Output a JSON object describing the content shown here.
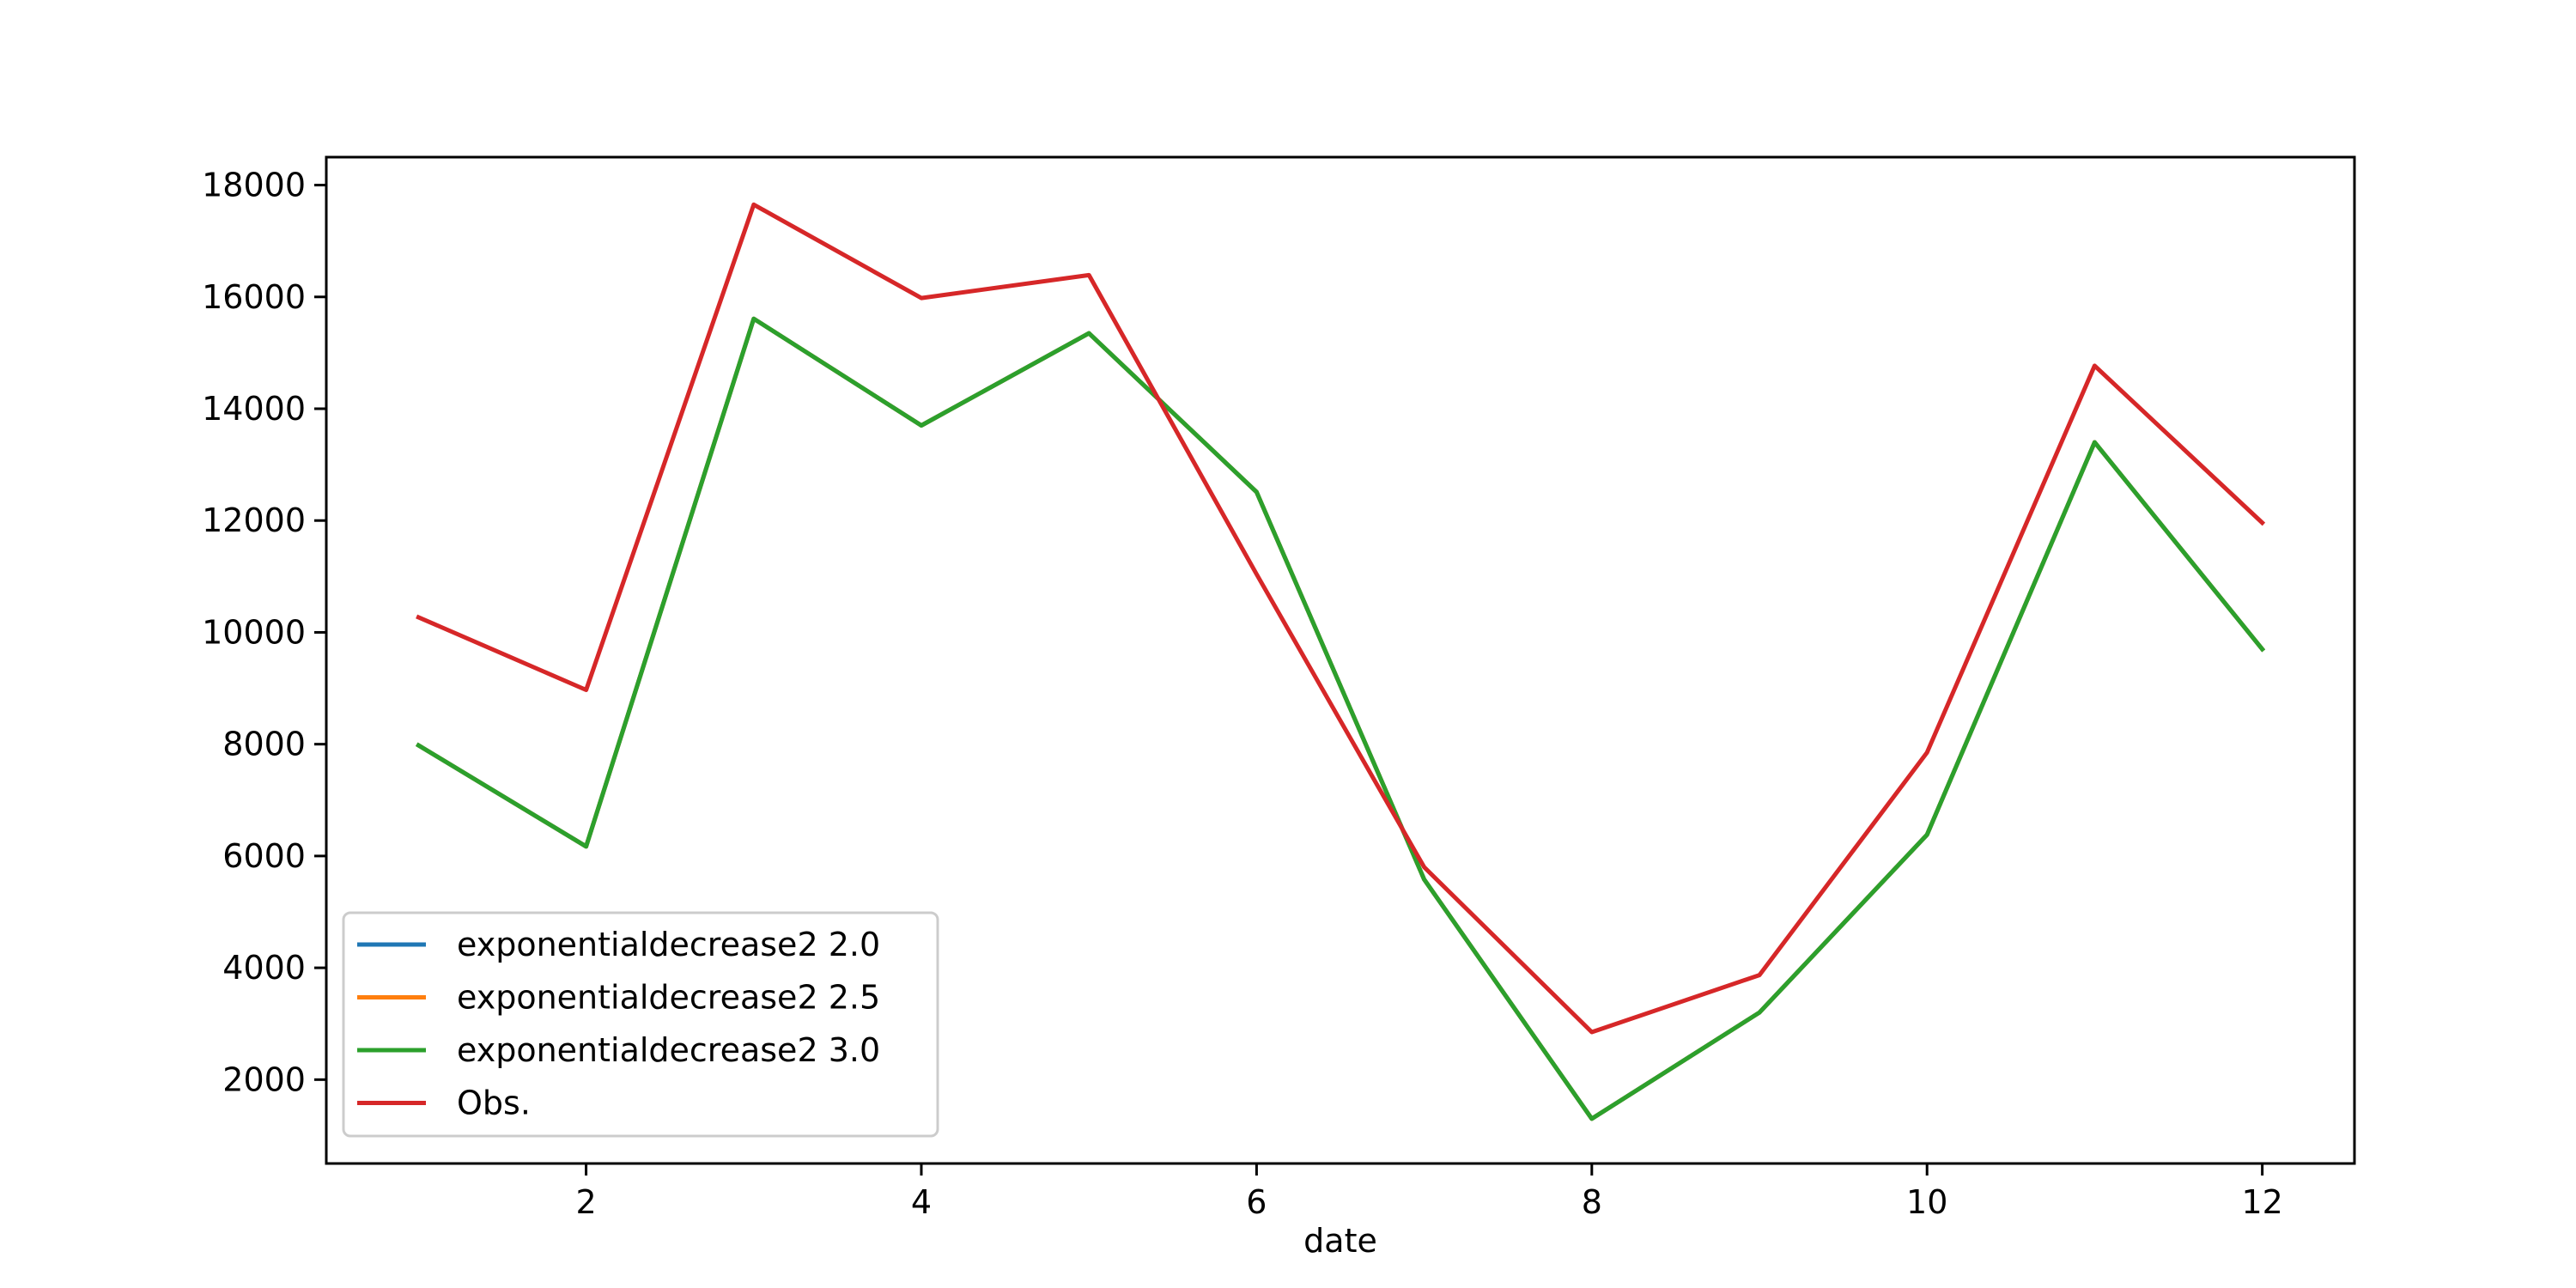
{
  "chart_data": {
    "type": "line",
    "title": "",
    "xlabel": "date",
    "ylabel": "",
    "x": [
      1,
      2,
      3,
      4,
      5,
      6,
      7,
      8,
      9,
      10,
      11,
      12
    ],
    "xlim": [
      0.45,
      12.55
    ],
    "ylim": [
      500,
      18500
    ],
    "xticks": [
      2,
      4,
      6,
      8,
      10,
      12
    ],
    "yticks": [
      2000,
      4000,
      6000,
      8000,
      10000,
      12000,
      14000,
      16000,
      18000
    ],
    "grid": false,
    "legend_position": "lower-left",
    "series": [
      {
        "name": "exponentialdecrease2 2.0",
        "color": "#1f77b4",
        "values": [
          7980,
          6170,
          15610,
          13700,
          15350,
          12510,
          5580,
          1300,
          3200,
          6380,
          13400,
          9700
        ]
      },
      {
        "name": "exponentialdecrease2 2.5",
        "color": "#ff7f0e",
        "values": [
          7980,
          6170,
          15610,
          13700,
          15350,
          12510,
          5580,
          1300,
          3200,
          6380,
          13400,
          9700
        ]
      },
      {
        "name": "exponentialdecrease2 3.0",
        "color": "#2ca02c",
        "values": [
          7980,
          6170,
          15610,
          13700,
          15350,
          12510,
          5580,
          1300,
          3200,
          6380,
          13400,
          9700
        ]
      },
      {
        "name": "Obs.",
        "color": "#d62728",
        "values": [
          10270,
          8970,
          17650,
          15980,
          16390,
          11040,
          5800,
          2850,
          3870,
          7850,
          14770,
          11960
        ]
      }
    ]
  }
}
